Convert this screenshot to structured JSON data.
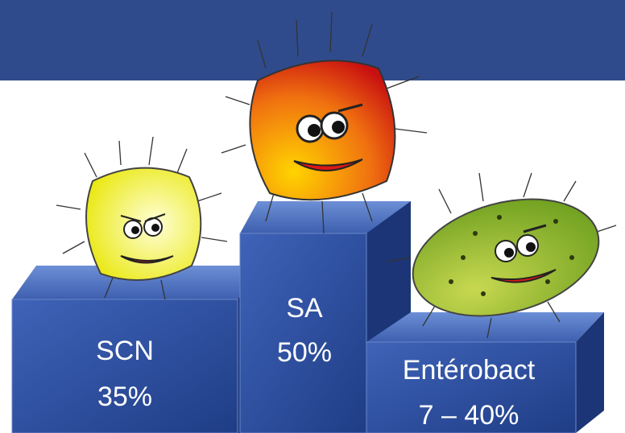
{
  "podium": [
    {
      "name": "SCN",
      "rate": "35%"
    },
    {
      "name": "SA",
      "rate": "50%"
    },
    {
      "name": "Entérobact",
      "rate": "7 – 40%"
    }
  ]
}
